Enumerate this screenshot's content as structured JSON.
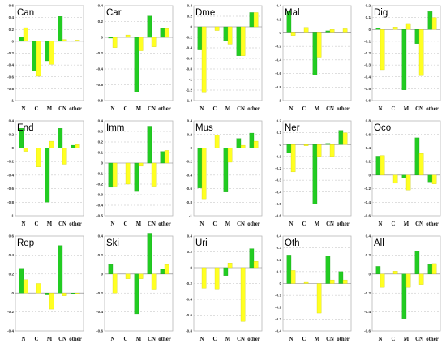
{
  "colors": {
    "series_a": "#22cc22",
    "series_b": "#ffff22"
  },
  "chart_data": [
    {
      "type": "bar",
      "title": "Can",
      "categories": [
        "N",
        "C",
        "M",
        "CN",
        "other"
      ],
      "ylim": [
        -1,
        0.6
      ],
      "yticks": [
        -1,
        -0.8,
        -0.6,
        -0.4,
        -0.2,
        0,
        0.2,
        0.4,
        0.6
      ],
      "series": [
        {
          "values": [
            0.07,
            -0.5,
            -0.33,
            0.42,
            0.01
          ]
        },
        {
          "values": [
            0.23,
            -0.59,
            -0.39,
            0.03,
            0.02
          ]
        }
      ]
    },
    {
      "type": "bar",
      "title": "Car",
      "categories": [
        "N",
        "C",
        "M",
        "CN",
        "other"
      ],
      "ylim": [
        -0.8,
        0.4
      ],
      "yticks": [
        -0.8,
        -0.6,
        -0.4,
        -0.2,
        0,
        0.2,
        0.4
      ],
      "series": [
        {
          "values": [
            -0.01,
            0,
            -0.69,
            0.27,
            0.12
          ]
        },
        {
          "values": [
            -0.13,
            0.03,
            -0.17,
            -0.12,
            0.11
          ]
        }
      ]
    },
    {
      "type": "bar",
      "title": "Dme",
      "categories": [
        "N",
        "C",
        "M",
        "CN",
        "other"
      ],
      "ylim": [
        -1.4,
        0.4
      ],
      "yticks": [
        -1.4,
        -1.2,
        -1,
        -0.8,
        -0.6,
        -0.4,
        -0.2,
        0,
        0.2,
        0.4
      ],
      "series": [
        {
          "values": [
            -0.44,
            0,
            -0.26,
            -0.55,
            0.27
          ]
        },
        {
          "values": [
            -1.25,
            -0.07,
            -0.33,
            -0.55,
            0.27
          ]
        }
      ]
    },
    {
      "type": "bar",
      "title": "Mal",
      "categories": [
        "N",
        "C",
        "M",
        "CN",
        "other"
      ],
      "ylim": [
        -1,
        0.4
      ],
      "yticks": [
        -1,
        -0.8,
        -0.6,
        -0.4,
        -0.2,
        0,
        0.2,
        0.4
      ],
      "series": [
        {
          "values": [
            0.32,
            0,
            -0.62,
            0.03,
            0
          ]
        },
        {
          "values": [
            -0.04,
            0.08,
            -0.36,
            0.05,
            0.06
          ]
        }
      ]
    },
    {
      "type": "bar",
      "title": "Dig",
      "categories": [
        "N",
        "C",
        "M",
        "CN",
        "other"
      ],
      "ylim": [
        -0.6,
        0.2
      ],
      "yticks": [
        -0.6,
        -0.5,
        -0.4,
        -0.3,
        -0.2,
        -0.1,
        0,
        0.1,
        0.2
      ],
      "series": [
        {
          "values": [
            0.01,
            0,
            -0.51,
            -0.12,
            0.15
          ]
        },
        {
          "values": [
            -0.34,
            0.02,
            0.05,
            -0.39,
            0.1
          ]
        }
      ]
    },
    {
      "type": "bar",
      "title": "End",
      "categories": [
        "N",
        "C",
        "M",
        "CN",
        "other"
      ],
      "ylim": [
        -1,
        0.4
      ],
      "yticks": [
        -1,
        -0.8,
        -0.6,
        -0.4,
        -0.2,
        0,
        0.2,
        0.4
      ],
      "series": [
        {
          "values": [
            0.29,
            0,
            -0.8,
            0.29,
            0.04
          ]
        },
        {
          "values": [
            -0.05,
            -0.28,
            0.1,
            -0.24,
            0.05
          ]
        }
      ]
    },
    {
      "type": "bar",
      "title": "Imm",
      "categories": [
        "N",
        "C",
        "M",
        "CN",
        "other"
      ],
      "ylim": [
        -0.5,
        0.4
      ],
      "yticks": [
        -0.5,
        -0.4,
        -0.3,
        -0.2,
        -0.1,
        0,
        0.1,
        0.2,
        0.3,
        0.4
      ],
      "series": [
        {
          "values": [
            -0.23,
            0,
            -0.27,
            0.35,
            0.11
          ]
        },
        {
          "values": [
            -0.22,
            -0.2,
            -0.03,
            -0.22,
            0.12
          ]
        }
      ]
    },
    {
      "type": "bar",
      "title": "Mus",
      "categories": [
        "N",
        "C",
        "M",
        "CN",
        "other"
      ],
      "ylim": [
        -1,
        0.4
      ],
      "yticks": [
        -1,
        -0.8,
        -0.6,
        -0.4,
        -0.2,
        0,
        0.2,
        0.4
      ],
      "series": [
        {
          "values": [
            -0.59,
            0,
            -0.65,
            0.14,
            0.22
          ]
        },
        {
          "values": [
            -0.75,
            0.19,
            -0.21,
            0.04,
            0.1
          ]
        }
      ]
    },
    {
      "type": "bar",
      "title": "Ner",
      "categories": [
        "N",
        "C",
        "M",
        "CN",
        "other"
      ],
      "ylim": [
        -0.6,
        0.2
      ],
      "yticks": [
        -0.6,
        -0.5,
        -0.4,
        -0.3,
        -0.2,
        -0.1,
        0,
        0.1,
        0.2
      ],
      "series": [
        {
          "values": [
            -0.07,
            0,
            -0.5,
            0.01,
            0.12
          ]
        },
        {
          "values": [
            -0.23,
            -0.01,
            -0.1,
            -0.1,
            0.1
          ]
        }
      ]
    },
    {
      "type": "bar",
      "title": "Oco",
      "categories": [
        "N",
        "C",
        "M",
        "CN",
        "other"
      ],
      "ylim": [
        -0.6,
        0.8
      ],
      "yticks": [
        -0.6,
        -0.4,
        -0.2,
        0,
        0.2,
        0.4,
        0.6,
        0.8
      ],
      "series": [
        {
          "values": [
            0.28,
            0,
            -0.04,
            0.55,
            -0.1
          ]
        },
        {
          "values": [
            0.29,
            -0.12,
            -0.22,
            0.32,
            -0.13
          ]
        }
      ]
    },
    {
      "type": "bar",
      "title": "Rep",
      "categories": [
        "N",
        "C",
        "M",
        "CN",
        "other"
      ],
      "ylim": [
        -0.4,
        0.6
      ],
      "yticks": [
        -0.4,
        -0.2,
        0,
        0.2,
        0.4,
        0.6
      ],
      "series": [
        {
          "values": [
            0.26,
            0,
            -0.02,
            0.5,
            -0.01
          ]
        },
        {
          "values": [
            0.14,
            0.1,
            -0.17,
            -0.03,
            -0.01
          ]
        }
      ]
    },
    {
      "type": "bar",
      "title": "Ski",
      "categories": [
        "N",
        "C",
        "M",
        "CN",
        "other"
      ],
      "ylim": [
        -0.6,
        0.4
      ],
      "yticks": [
        -0.6,
        -0.4,
        -0.2,
        0,
        0.2,
        0.4
      ],
      "series": [
        {
          "values": [
            0.1,
            0,
            -0.42,
            0.43,
            0.05
          ]
        },
        {
          "values": [
            -0.2,
            -0.05,
            -0.05,
            -0.16,
            0.1
          ]
        }
      ]
    },
    {
      "type": "bar",
      "title": "Uri",
      "categories": [
        "N",
        "C",
        "M",
        "CN",
        "other"
      ],
      "ylim": [
        -0.8,
        0.4
      ],
      "yticks": [
        -0.8,
        -0.6,
        -0.4,
        -0.2,
        0,
        0.2,
        0.4
      ],
      "series": [
        {
          "values": [
            0,
            0,
            -0.1,
            0,
            0.24
          ]
        },
        {
          "values": [
            -0.26,
            -0.27,
            0.06,
            -0.68,
            0.08
          ]
        }
      ]
    },
    {
      "type": "bar",
      "title": "Oth",
      "categories": [
        "N",
        "C",
        "M",
        "CN",
        "other"
      ],
      "ylim": [
        -0.4,
        0.4
      ],
      "yticks": [
        -0.4,
        -0.3,
        -0.2,
        -0.1,
        0,
        0.1,
        0.2,
        0.3,
        0.4
      ],
      "series": [
        {
          "values": [
            0.24,
            0,
            0,
            0.23,
            0.1
          ]
        },
        {
          "values": [
            0.11,
            0.01,
            -0.25,
            0.03,
            0.03
          ]
        }
      ]
    },
    {
      "type": "bar",
      "title": "All",
      "categories": [
        "N",
        "C",
        "M",
        "CN",
        "other"
      ],
      "ylim": [
        -0.6,
        0.4
      ],
      "yticks": [
        -0.6,
        -0.4,
        -0.2,
        0,
        0.2,
        0.4
      ],
      "series": [
        {
          "values": [
            0.08,
            0,
            -0.47,
            0.24,
            0.1
          ]
        },
        {
          "values": [
            -0.14,
            0.03,
            -0.14,
            -0.11,
            0.11
          ]
        }
      ]
    }
  ]
}
